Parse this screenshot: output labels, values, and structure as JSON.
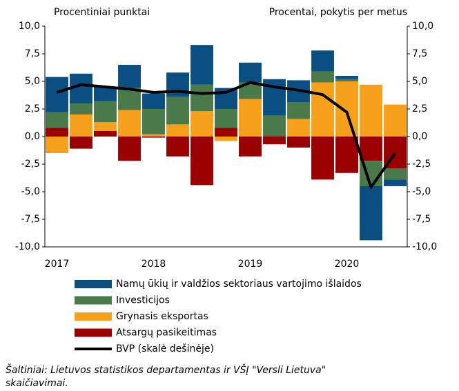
{
  "chart_data": {
    "type": "bar",
    "stacked": true,
    "left_axis_title": "Procentiniai punktai",
    "right_axis_title": "Procentai, pokytis per metus",
    "categories": [
      "2017",
      null,
      null,
      null,
      "2018",
      null,
      null,
      null,
      "2019",
      null,
      null,
      null,
      "2020",
      null,
      null
    ],
    "series": [
      {
        "name": "Namų ūkių ir valdžios sektoriaus vartojimo išlaidos",
        "color": "#0b4f82",
        "values": [
          3.2,
          2.7,
          1.3,
          2.1,
          1.4,
          2.2,
          3.6,
          1.9,
          1.8,
          3.3,
          2.0,
          1.9,
          0.3,
          -4.9,
          -0.6
        ]
      },
      {
        "name": "Investicijos",
        "color": "#4a7a4a",
        "values": [
          1.4,
          1.0,
          1.9,
          2.0,
          2.3,
          2.5,
          2.4,
          1.7,
          1.5,
          1.9,
          1.5,
          1.0,
          0.2,
          -2.3,
          -1.0
        ]
      },
      {
        "name": "Grynasis eksportas",
        "color": "#f7a01c",
        "values": [
          -1.5,
          2.0,
          0.8,
          2.4,
          0.2,
          1.1,
          2.3,
          -0.4,
          3.4,
          0.0,
          1.6,
          4.9,
          5.0,
          4.7,
          2.9
        ]
      },
      {
        "name": "Atsargų pasikeitimas",
        "color": "#990000",
        "values": [
          0.8,
          -1.1,
          0.5,
          -2.2,
          -0.1,
          -1.8,
          -4.4,
          0.8,
          -1.8,
          -0.7,
          -1.0,
          -3.9,
          -3.3,
          -2.2,
          -2.9
        ]
      },
      {
        "name": "BVP (skalė dešinėje)",
        "color": "#000000",
        "type": "line",
        "axis": "y2",
        "values": [
          4.0,
          4.7,
          4.5,
          4.3,
          4.0,
          4.1,
          3.9,
          4.0,
          4.9,
          4.5,
          4.2,
          3.8,
          2.2,
          -4.6,
          -1.5
        ]
      }
    ],
    "ylim": [
      -10,
      10
    ],
    "yticks": [
      {
        "value": 10,
        "label": "10,0"
      },
      {
        "value": 7.5,
        "label": "7,5"
      },
      {
        "value": 5,
        "label": "5,0"
      },
      {
        "value": 2.5,
        "label": "2,5"
      },
      {
        "value": 0,
        "label": "0,0"
      },
      {
        "value": -2.5,
        "label": "-2,5"
      },
      {
        "value": -5,
        "label": "-5,0"
      },
      {
        "value": -7.5,
        "label": "-7,5"
      },
      {
        "value": -10,
        "label": "-10,0"
      }
    ],
    "y2lim": [
      -10,
      10
    ],
    "y2ticks": [
      {
        "value": 10,
        "label": "10,0"
      },
      {
        "value": 7.5,
        "label": "7,5"
      },
      {
        "value": 5,
        "label": "5,0"
      },
      {
        "value": 2.5,
        "label": "2,5"
      },
      {
        "value": 0,
        "label": "0,0"
      },
      {
        "value": -2.5,
        "label": "-2,5"
      },
      {
        "value": -5,
        "label": "-5,0"
      },
      {
        "value": -7.5,
        "label": "-7,5"
      },
      {
        "value": -10,
        "label": "-10,0"
      }
    ],
    "grid": false,
    "source": [
      "Šaltiniai: Lietuvos statistikos departamentas ir VŠĮ \"Versli Lietuva\"",
      "skaičiavimai."
    ]
  }
}
